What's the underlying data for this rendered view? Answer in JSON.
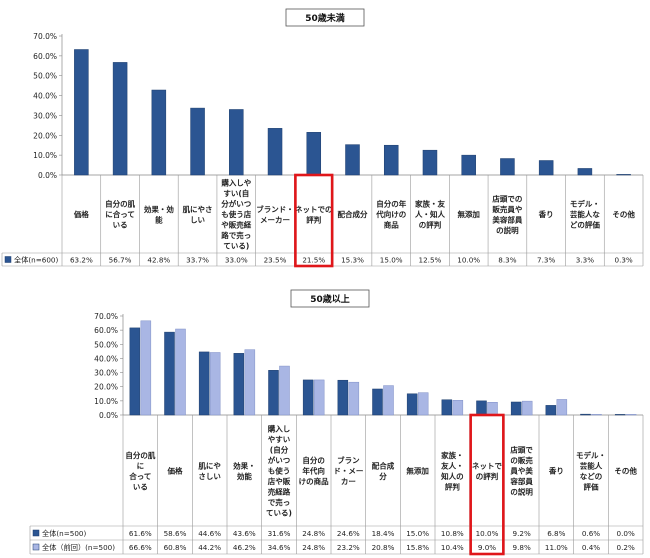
{
  "chart_data": [
    {
      "type": "bar",
      "title": "50歳未満",
      "ylim": [
        0,
        70
      ],
      "yticks": [
        "0.0%",
        "10.0%",
        "20.0%",
        "30.0%",
        "40.0%",
        "50.0%",
        "60.0%",
        "70.0%"
      ],
      "categories": [
        [
          "価格"
        ],
        [
          "自分の肌",
          "に合って",
          "いる"
        ],
        [
          "効果・効",
          "能"
        ],
        [
          "肌にやさ",
          "しい"
        ],
        [
          "購入しや",
          "すい(自",
          "分がいつ",
          "も使う店",
          "や販売経",
          "路で売っ",
          "ている)"
        ],
        [
          "ブランド・",
          "メーカー"
        ],
        [
          "ネットでの",
          "評判"
        ],
        [
          "配合成分"
        ],
        [
          "自分の年",
          "代向けの",
          "商品"
        ],
        [
          "家族・友",
          "人・知人",
          "の評判"
        ],
        [
          "無添加"
        ],
        [
          "店頭での",
          "販売員や",
          "美容部員",
          "の説明"
        ],
        [
          "香り"
        ],
        [
          "モデル・",
          "芸能人な",
          "どの評価"
        ],
        [
          "その他"
        ]
      ],
      "highlight_index": 6,
      "series": [
        {
          "name": "全体(n=600)",
          "color": "#2b5592",
          "values": [
            63.2,
            56.7,
            42.8,
            33.7,
            33.0,
            23.5,
            21.5,
            15.3,
            15.0,
            12.5,
            10.0,
            8.3,
            7.3,
            3.3,
            0.3
          ],
          "labels": [
            "63.2%",
            "56.7%",
            "42.8%",
            "33.7%",
            "33.0%",
            "23.5%",
            "21.5%",
            "15.3%",
            "15.0%",
            "12.5%",
            "10.0%",
            "8.3%",
            "7.3%",
            "3.3%",
            "0.3%"
          ]
        }
      ]
    },
    {
      "type": "bar",
      "title": "50歳以上",
      "ylim": [
        0,
        70
      ],
      "yticks": [
        "0.0%",
        "10.0%",
        "20.0%",
        "30.0%",
        "40.0%",
        "50.0%",
        "60.0%",
        "70.0%"
      ],
      "categories": [
        [
          "自分の肌",
          "に",
          "合って",
          "いる"
        ],
        [
          "価格"
        ],
        [
          "肌にや",
          "さしい"
        ],
        [
          "効果・",
          "効能"
        ],
        [
          "購入し",
          "やすい",
          "(自分",
          "がいつ",
          "も使う",
          "店や販",
          "売経路",
          "で売っ",
          "ている)"
        ],
        [
          "自分の",
          "年代向",
          "けの商品"
        ],
        [
          "ブラン",
          "ド・メー",
          "カー"
        ],
        [
          "配合成",
          "分"
        ],
        [
          "無添加"
        ],
        [
          "家族・",
          "友人・",
          "知人の",
          "評判"
        ],
        [
          "ネットで",
          "の評判"
        ],
        [
          "店頭で",
          "の販売",
          "員や美",
          "容部員",
          "の説明"
        ],
        [
          "香り"
        ],
        [
          "モデル・",
          "芸能人",
          "などの",
          "評価"
        ],
        [
          "その他"
        ]
      ],
      "highlight_index": 10,
      "series": [
        {
          "name": "全体(n=500)",
          "color": "#2b5592",
          "values": [
            61.6,
            58.6,
            44.6,
            43.6,
            31.6,
            24.8,
            24.6,
            18.4,
            15.0,
            10.8,
            10.0,
            9.2,
            6.8,
            0.6,
            0.0
          ],
          "labels": [
            "61.6%",
            "58.6%",
            "44.6%",
            "43.6%",
            "31.6%",
            "24.8%",
            "24.6%",
            "18.4%",
            "15.0%",
            "10.8%",
            "10.0%",
            "9.2%",
            "6.8%",
            "0.6%",
            "0.0%"
          ]
        },
        {
          "name": "全体（前回）(n=500)",
          "color": "#a9b6e4",
          "values": [
            66.6,
            60.8,
            44.2,
            46.2,
            34.6,
            24.8,
            23.2,
            20.8,
            15.8,
            10.4,
            9.0,
            9.8,
            11.0,
            0.4,
            0.2
          ],
          "labels": [
            "66.6%",
            "60.8%",
            "44.2%",
            "46.2%",
            "34.6%",
            "24.8%",
            "23.2%",
            "20.8%",
            "15.8%",
            "10.4%",
            "9.0%",
            "9.8%",
            "11.0%",
            "0.4%",
            "0.2%"
          ]
        }
      ]
    }
  ]
}
